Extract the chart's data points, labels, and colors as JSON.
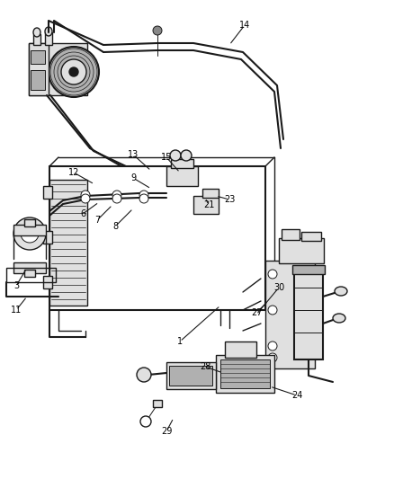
{
  "background_color": "#ffffff",
  "line_color": "#1a1a1a",
  "figsize": [
    4.38,
    5.33
  ],
  "dpi": 100,
  "gray_fill": "#c8c8c8",
  "light_gray": "#e0e0e0",
  "mid_gray": "#b0b0b0",
  "dark_gray": "#888888"
}
